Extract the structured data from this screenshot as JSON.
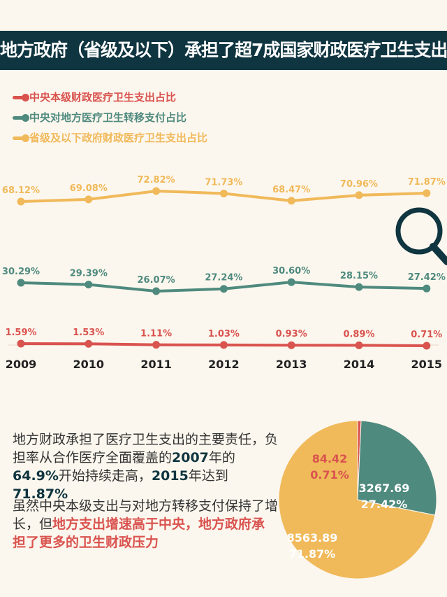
{
  "header": {
    "title": "地方政府（省级及以下）承担了超7成国家财政医疗卫生支出"
  },
  "chart_data": [
    {
      "type": "line",
      "title": "",
      "x": [
        "2009",
        "2010",
        "2011",
        "2012",
        "2013",
        "2014",
        "2015"
      ],
      "series": [
        {
          "name": "中央本级财政医疗卫生支出占比",
          "color": "#d9534f",
          "values": [
            1.59,
            1.53,
            1.11,
            1.03,
            0.93,
            0.89,
            0.71
          ],
          "labels": [
            "1.59%",
            "1.53%",
            "1.11%",
            "1.03%",
            "0.93%",
            "0.89%",
            "0.71%"
          ]
        },
        {
          "name": "中央对地方医疗卫生转移支付占比",
          "color": "#4f8a7e",
          "values": [
            30.29,
            29.39,
            26.07,
            27.24,
            30.6,
            28.15,
            27.42
          ],
          "labels": [
            "30.29%",
            "29.39%",
            "26.07%",
            "27.24%",
            "30.60%",
            "28.15%",
            "27.42%"
          ]
        },
        {
          "name": "省级及以下政府财政医疗卫生支出占比",
          "color": "#f0b95a",
          "values": [
            68.12,
            69.08,
            72.82,
            71.73,
            68.47,
            70.96,
            71.87
          ],
          "labels": [
            "68.12%",
            "69.08%",
            "72.82%",
            "71.73%",
            "68.47%",
            "70.96%",
            "71.87%"
          ]
        }
      ],
      "legend": "top-left"
    },
    {
      "type": "pie",
      "slices": [
        {
          "name": "中央本级",
          "value": 84.42,
          "percent": 0.71,
          "label": "84.42",
          "pct_label": "0.71%",
          "color": "#d9534f"
        },
        {
          "name": "中央对地方转移支付",
          "value": 3267.69,
          "percent": 27.42,
          "label": "3267.69",
          "pct_label": "27.42%",
          "color": "#4f8a7e"
        },
        {
          "name": "省级及以下",
          "value": 8563.89,
          "percent": 71.87,
          "label": "8563.89",
          "pct_label": "71.87%",
          "color": "#f0b95a"
        }
      ]
    }
  ],
  "text": {
    "p1": [
      "地方财政承担了医疗卫生支出的主要责任，负担率从合作医疗全面覆盖的",
      "2007",
      "年的",
      "64.9%",
      "开始持续走高，",
      "2015",
      "年达到",
      "71.87%"
    ],
    "p2": [
      "虽然中央本级支出与对地方转移支付保持了增长，但",
      "地方支出增速高于中央，地方政府承担了更多的卫生财政压力"
    ]
  },
  "icons": {
    "magnifier": "magnifier-icon"
  }
}
